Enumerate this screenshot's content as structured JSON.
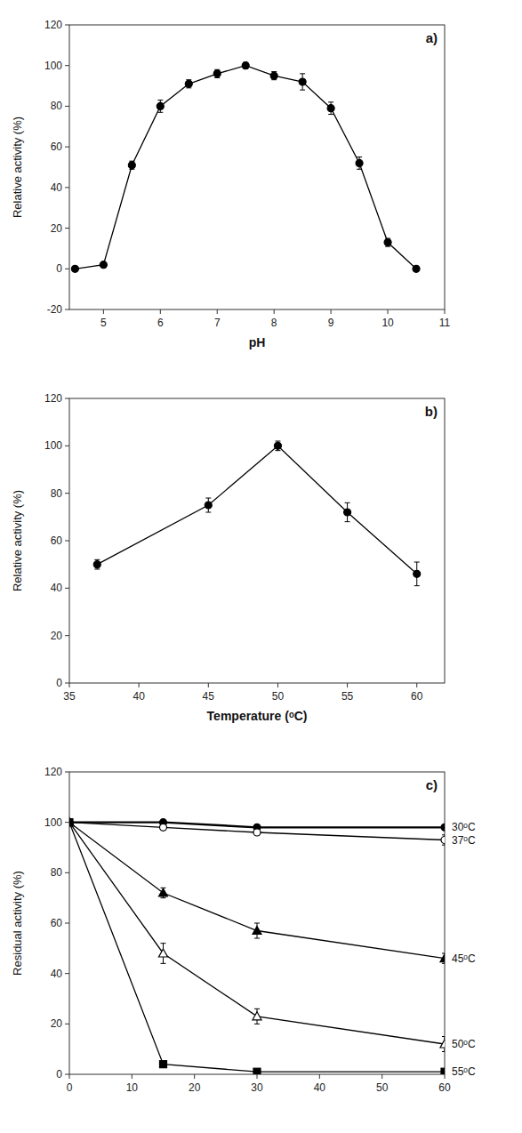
{
  "chart_data": [
    {
      "type": "line",
      "title": "a)",
      "x_label": "pH",
      "y_label": "Relative activity (%)",
      "x": [
        4.5,
        5.0,
        5.5,
        6.0,
        6.5,
        7.0,
        7.5,
        8.0,
        8.5,
        9.0,
        9.5,
        10.0,
        10.5
      ],
      "series": [
        {
          "color": "#000000",
          "marker": "circle",
          "line_style": "solid",
          "values": [
            0,
            2,
            51,
            80,
            91,
            96,
            100,
            95,
            92,
            79,
            52,
            13,
            0
          ],
          "errors": [
            0.5,
            0.8,
            2,
            3,
            2,
            2,
            1.5,
            2,
            4,
            3,
            3,
            2,
            0.5
          ]
        }
      ],
      "xlim": [
        4.4,
        11
      ],
      "ylim": [
        -20,
        120
      ],
      "xticks": [
        5,
        6,
        7,
        8,
        9,
        10,
        11
      ],
      "yticks": [
        -20,
        0,
        20,
        40,
        60,
        80,
        100,
        120
      ]
    },
    {
      "type": "line",
      "title": "b)",
      "x_label": "Temperature (ᵒC)",
      "y_label": "Relative activity (%)",
      "x": [
        37,
        45,
        50,
        55,
        60
      ],
      "series": [
        {
          "color": "#000000",
          "marker": "circle",
          "line_style": "solid",
          "values": [
            50,
            75,
            100,
            72,
            46
          ],
          "errors": [
            2,
            3,
            2,
            4,
            5
          ]
        }
      ],
      "xlim": [
        35,
        62
      ],
      "ylim": [
        0,
        120
      ],
      "xticks": [
        35,
        40,
        45,
        50,
        55,
        60
      ],
      "yticks": [
        0,
        20,
        40,
        60,
        80,
        100,
        120
      ]
    },
    {
      "type": "line",
      "title": "c)",
      "y_label": "Residual activity (%)",
      "x": [
        0,
        15,
        30,
        60
      ],
      "series": [
        {
          "name": "30ᵒC",
          "color": "#000000",
          "marker": "circle",
          "line_style": "thick",
          "values": [
            100,
            100,
            98,
            98
          ],
          "errors": [
            0.5,
            0.5,
            1,
            1
          ]
        },
        {
          "name": "37ᵒC",
          "color": "#000000",
          "marker": "circle-open",
          "line_style": "solid",
          "values": [
            100,
            98,
            96,
            93
          ],
          "errors": [
            0.5,
            1,
            1,
            2
          ]
        },
        {
          "name": "45ᵒC",
          "color": "#000000",
          "marker": "triangle",
          "line_style": "solid",
          "values": [
            100,
            72,
            57,
            46
          ],
          "errors": [
            0.5,
            2,
            3,
            2
          ]
        },
        {
          "name": "50ᵒC",
          "color": "#000000",
          "marker": "triangle-open",
          "line_style": "solid",
          "values": [
            100,
            48,
            23,
            12
          ],
          "errors": [
            0.5,
            4,
            3,
            3
          ]
        },
        {
          "name": "55ᵒC",
          "color": "#000000",
          "marker": "square",
          "line_style": "solid",
          "values": [
            100,
            4,
            1,
            1
          ],
          "errors": [
            0.5,
            0.5,
            0.3,
            0.3
          ]
        }
      ],
      "xlim": [
        0,
        60
      ],
      "ylim": [
        0,
        120
      ],
      "xticks": [
        0,
        10,
        20,
        30,
        40,
        50,
        60
      ],
      "yticks": [
        0,
        20,
        40,
        60,
        80,
        100,
        120
      ]
    }
  ]
}
